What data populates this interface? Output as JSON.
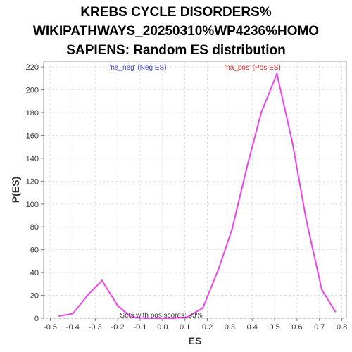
{
  "chart_data": {
    "type": "line",
    "title_lines": [
      "KREBS CYCLE DISORDERS%",
      "WIKIPATHWAYS_20250310%WP4236%HOMO",
      "SAPIENS: Random ES distribution"
    ],
    "xlabel": "ES",
    "ylabel": "P(ES)",
    "xlim": [
      -0.53,
      0.82
    ],
    "ylim": [
      0,
      225
    ],
    "xticks": [
      -0.5,
      -0.4,
      -0.3,
      -0.2,
      -0.1,
      0.0,
      0.1,
      0.2,
      0.3,
      0.4,
      0.5,
      0.6,
      0.7,
      0.8
    ],
    "xtick_labels": [
      "-0.5",
      "-0.4",
      "-0.3",
      "-0.2",
      "-0.1",
      "0.0",
      "0.1",
      "0.2",
      "0.3",
      "0.4",
      "0.5",
      "0.6",
      "0.7",
      "0.8"
    ],
    "yticks": [
      0,
      20,
      40,
      60,
      80,
      100,
      120,
      140,
      160,
      180,
      200,
      220
    ],
    "ytick_labels": [
      "0",
      "20",
      "40",
      "60",
      "80",
      "100",
      "120",
      "140",
      "160",
      "180",
      "200",
      "220"
    ],
    "grid": true,
    "line_color": "#ee44ee",
    "series": [
      {
        "x": [
          -0.46,
          -0.4,
          -0.33,
          -0.27,
          -0.2,
          -0.14,
          -0.08,
          -0.01,
          0.05,
          0.11,
          0.18,
          0.25,
          0.31,
          0.38,
          0.44,
          0.51,
          0.58,
          0.64,
          0.71,
          0.77
        ],
        "y": [
          2,
          4,
          21,
          33,
          11,
          1,
          0,
          0,
          0,
          1,
          9,
          43,
          78,
          135,
          180,
          214,
          153,
          87,
          25,
          6
        ]
      }
    ],
    "legend": {
      "neg": {
        "text": "'na_neg' (Neg ES)",
        "color": "#4444dd"
      },
      "pos": {
        "text": "'na_pos' (Pos ES)",
        "color": "#dd2222"
      }
    },
    "annotation": "Sets with pos scores: 93%"
  }
}
